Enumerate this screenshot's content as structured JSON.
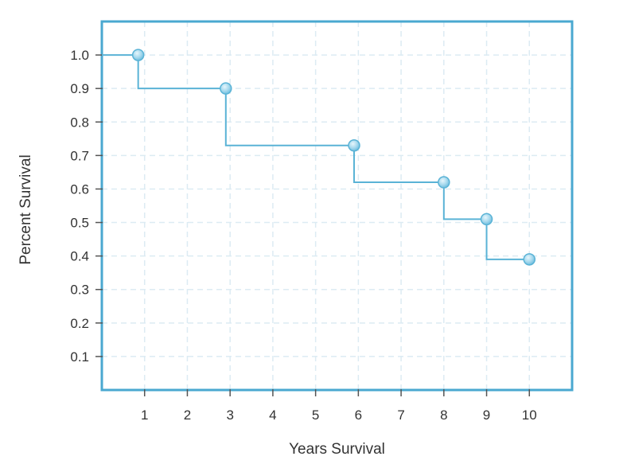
{
  "chart_data": {
    "type": "line",
    "step": true,
    "xlabel": "Years Survival",
    "ylabel": "Percent Survival",
    "x": [
      0.85,
      2.9,
      5.9,
      8,
      9,
      10
    ],
    "y": [
      1.0,
      0.9,
      0.73,
      0.62,
      0.51,
      0.39
    ],
    "xlim": [
      0,
      11
    ],
    "ylim": [
      0,
      1.1
    ],
    "x_ticks": [
      1,
      2,
      3,
      4,
      5,
      6,
      7,
      8,
      9,
      10
    ],
    "x_tick_labels": [
      "1",
      "2",
      "3",
      "4",
      "5",
      "6",
      "7",
      "8",
      "9",
      "10"
    ],
    "y_ticks": [
      0.1,
      0.2,
      0.3,
      0.4,
      0.5,
      0.6,
      0.7,
      0.8,
      0.9,
      1.0
    ],
    "y_tick_labels": [
      "0.1",
      "0.2",
      "0.3",
      "0.4",
      "0.5",
      "0.6",
      "0.7",
      "0.8",
      "0.9",
      "1.0"
    ],
    "grid": true,
    "colors": {
      "frame": "#4aa8d0",
      "line": "#5ab3d6",
      "marker": "#9bd3ea",
      "grid": "#dcebf3"
    }
  }
}
